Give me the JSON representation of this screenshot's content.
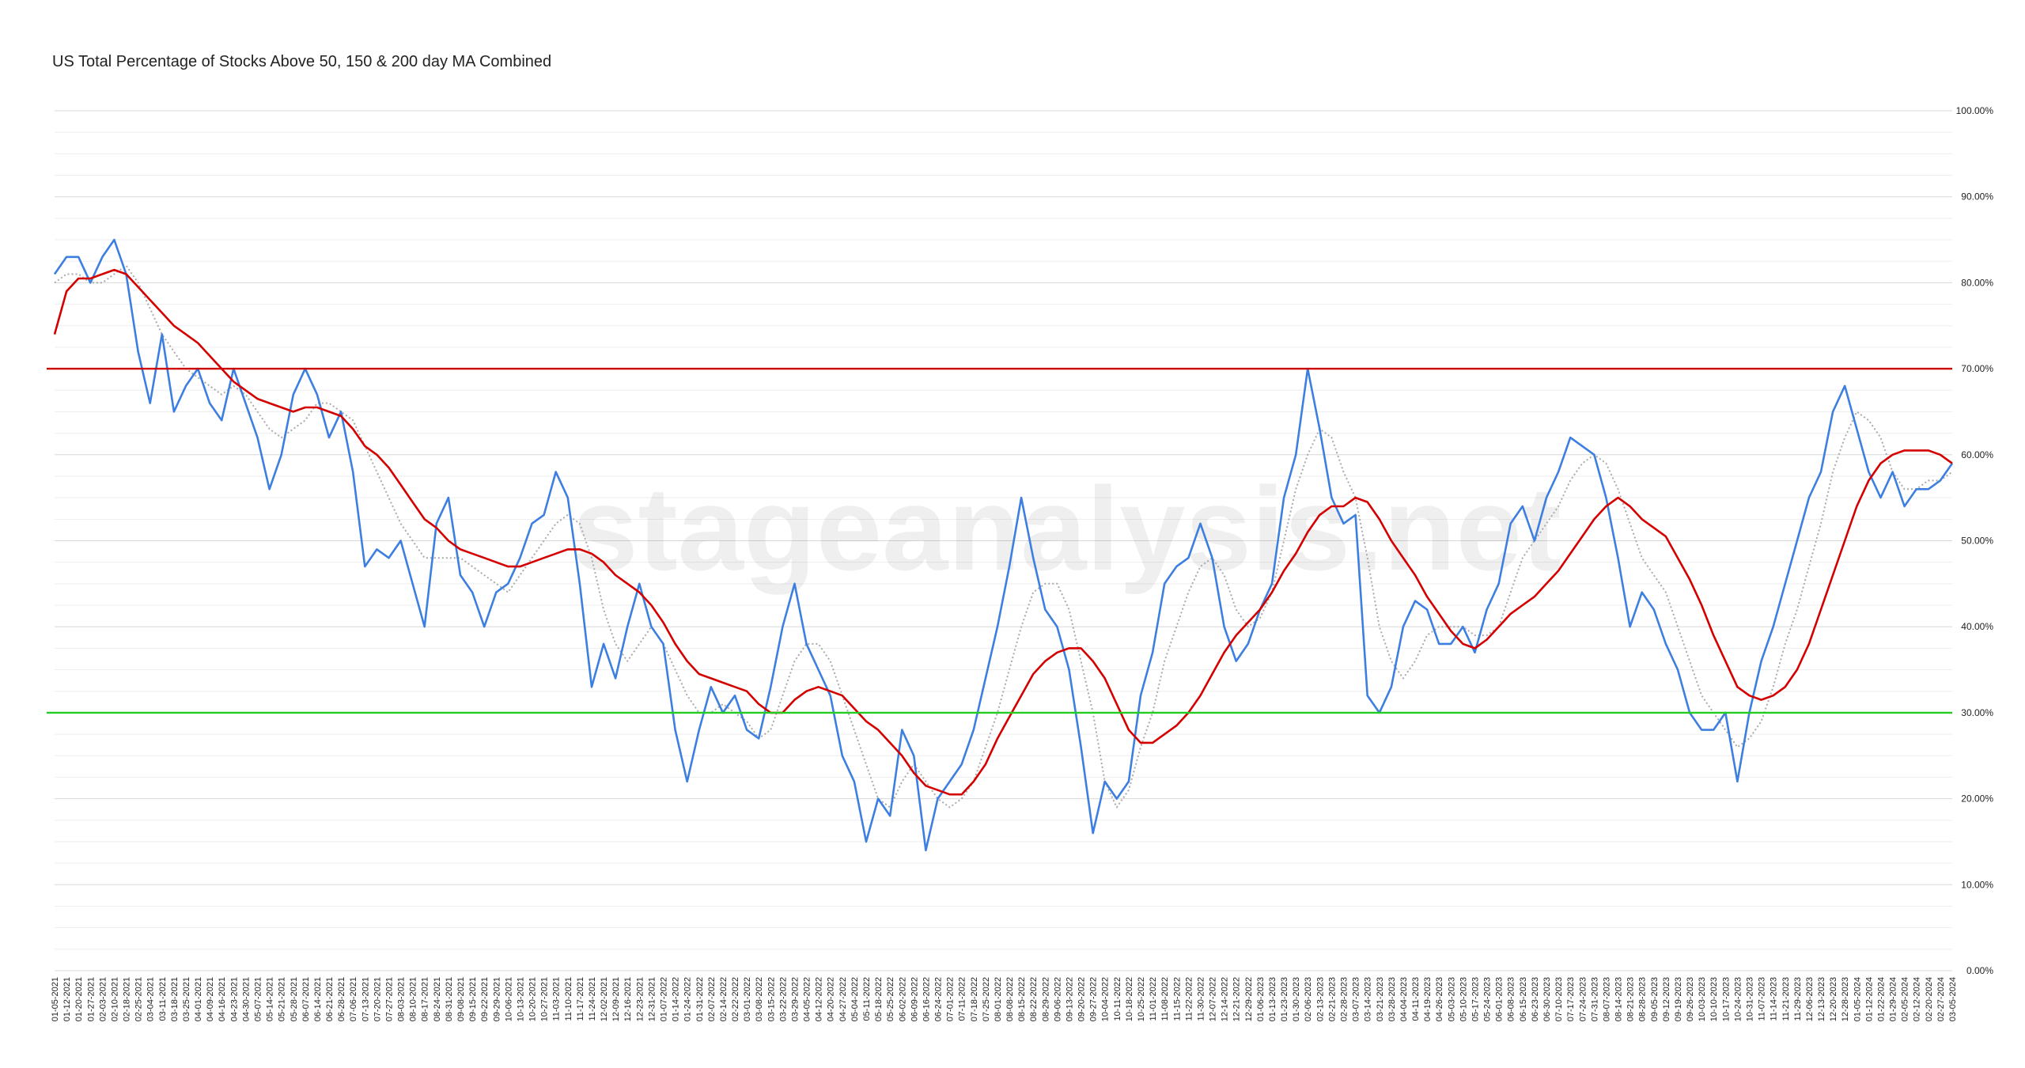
{
  "chart_data": {
    "type": "line",
    "title": "US Total Percentage of Stocks Above 50, 150 & 200 day MA Combined",
    "watermark": "stageanalysis.net",
    "categories": [
      "01-05-2021",
      "01-12-2021",
      "01-20-2021",
      "01-27-2021",
      "02-03-2021",
      "02-10-2021",
      "02-18-2021",
      "02-25-2021",
      "03-04-2021",
      "03-11-2021",
      "03-18-2021",
      "03-25-2021",
      "04-01-2021",
      "04-09-2021",
      "04-16-2021",
      "04-23-2021",
      "04-30-2021",
      "05-07-2021",
      "05-14-2021",
      "05-21-2021",
      "05-28-2021",
      "06-07-2021",
      "06-14-2021",
      "06-21-2021",
      "06-28-2021",
      "07-06-2021",
      "07-13-2021",
      "07-20-2021",
      "07-27-2021",
      "08-03-2021",
      "08-10-2021",
      "08-17-2021",
      "08-24-2021",
      "08-31-2021",
      "09-08-2021",
      "09-15-2021",
      "09-22-2021",
      "09-29-2021",
      "10-06-2021",
      "10-13-2021",
      "10-20-2021",
      "10-27-2021",
      "11-03-2021",
      "11-10-2021",
      "11-17-2021",
      "11-24-2021",
      "12-02-2021",
      "12-09-2021",
      "12-16-2021",
      "12-23-2021",
      "12-31-2021",
      "01-07-2022",
      "01-14-2022",
      "01-24-2022",
      "01-31-2022",
      "02-07-2022",
      "02-14-2022",
      "02-22-2022",
      "03-01-2022",
      "03-08-2022",
      "03-15-2022",
      "03-22-2022",
      "03-29-2022",
      "04-05-2022",
      "04-12-2022",
      "04-20-2022",
      "04-27-2022",
      "05-04-2022",
      "05-11-2022",
      "05-18-2022",
      "05-25-2022",
      "06-02-2022",
      "06-09-2022",
      "06-16-2022",
      "06-24-2022",
      "07-01-2022",
      "07-11-2022",
      "07-18-2022",
      "07-25-2022",
      "08-01-2022",
      "08-08-2022",
      "08-15-2022",
      "08-22-2022",
      "08-29-2022",
      "09-06-2022",
      "09-13-2022",
      "09-20-2022",
      "09-27-2022",
      "10-04-2022",
      "10-11-2022",
      "10-18-2022",
      "10-25-2022",
      "11-01-2022",
      "11-08-2022",
      "11-15-2022",
      "11-22-2022",
      "11-30-2022",
      "12-07-2022",
      "12-14-2022",
      "12-21-2022",
      "12-29-2022",
      "01-06-2023",
      "01-13-2023",
      "01-23-2023",
      "01-30-2023",
      "02-06-2023",
      "02-13-2023",
      "02-21-2023",
      "02-28-2023",
      "03-07-2023",
      "03-14-2023",
      "03-21-2023",
      "03-28-2023",
      "04-04-2023",
      "04-11-2023",
      "04-19-2023",
      "04-26-2023",
      "05-03-2023",
      "05-10-2023",
      "05-17-2023",
      "05-24-2023",
      "06-01-2023",
      "06-08-2023",
      "06-15-2023",
      "06-23-2023",
      "06-30-2023",
      "07-10-2023",
      "07-17-2023",
      "07-24-2023",
      "07-31-2023",
      "08-07-2023",
      "08-14-2023",
      "08-21-2023",
      "08-28-2023",
      "09-05-2023",
      "09-12-2023",
      "09-19-2023",
      "09-26-2023",
      "10-03-2023",
      "10-10-2023",
      "10-17-2023",
      "10-24-2023",
      "10-31-2023",
      "11-07-2023",
      "11-14-2023",
      "11-21-2023",
      "11-29-2023",
      "12-06-2023",
      "12-13-2023",
      "12-20-2023",
      "12-28-2023",
      "01-05-2024",
      "01-12-2024",
      "01-22-2024",
      "01-29-2024",
      "02-05-2024",
      "02-12-2024",
      "02-20-2024",
      "02-27-2024",
      "03-05-2024"
    ],
    "series": [
      {
        "color": "#aaaaaa",
        "style": "dotted",
        "values": [
          80,
          81,
          81,
          80,
          80,
          81,
          82,
          80,
          77,
          74,
          72,
          70,
          69,
          68,
          67,
          68,
          67,
          65,
          63,
          62,
          63,
          64,
          66,
          66,
          65,
          64,
          61,
          58,
          55,
          52,
          50,
          48,
          48,
          48,
          48,
          47,
          46,
          45,
          44,
          46,
          48,
          50,
          52,
          53,
          52,
          48,
          42,
          38,
          36,
          38,
          40,
          38,
          35,
          32,
          30,
          30,
          31,
          30,
          29,
          27,
          28,
          32,
          36,
          38,
          38,
          36,
          32,
          28,
          24,
          20,
          19,
          22,
          24,
          22,
          20,
          19,
          20,
          22,
          26,
          30,
          35,
          40,
          44,
          45,
          45,
          42,
          36,
          30,
          22,
          19,
          21,
          26,
          30,
          36,
          40,
          44,
          47,
          48,
          46,
          42,
          40,
          41,
          44,
          50,
          56,
          60,
          63,
          62,
          58,
          55,
          48,
          40,
          36,
          34,
          36,
          39,
          40,
          40,
          40,
          39,
          39,
          40,
          44,
          48,
          50,
          52,
          54,
          57,
          59,
          60,
          59,
          56,
          52,
          48,
          46,
          44,
          40,
          36,
          32,
          30,
          28,
          26,
          27,
          29,
          33,
          38,
          42,
          47,
          52,
          58,
          62,
          65,
          64,
          62,
          58,
          56,
          56,
          57,
          57,
          58
        ]
      },
      {
        "color": "#3d7fe0",
        "style": "solid",
        "values": [
          81,
          83,
          83,
          80,
          83,
          85,
          81,
          72,
          66,
          74,
          65,
          68,
          70,
          66,
          64,
          70,
          66,
          62,
          56,
          60,
          67,
          70,
          67,
          62,
          65,
          58,
          47,
          49,
          48,
          50,
          45,
          40,
          52,
          55,
          46,
          44,
          40,
          44,
          45,
          48,
          52,
          53,
          58,
          55,
          45,
          33,
          38,
          34,
          40,
          45,
          40,
          38,
          28,
          22,
          28,
          33,
          30,
          32,
          28,
          27,
          33,
          40,
          45,
          38,
          35,
          32,
          25,
          22,
          15,
          20,
          18,
          28,
          25,
          14,
          20,
          22,
          24,
          28,
          34,
          40,
          47,
          55,
          48,
          42,
          40,
          35,
          26,
          16,
          22,
          20,
          22,
          32,
          37,
          45,
          47,
          48,
          52,
          48,
          40,
          36,
          38,
          42,
          45,
          55,
          60,
          70,
          63,
          55,
          52,
          53,
          32,
          30,
          33,
          40,
          43,
          42,
          38,
          38,
          40,
          37,
          42,
          45,
          52,
          54,
          50,
          55,
          58,
          62,
          61,
          60,
          55,
          48,
          40,
          44,
          42,
          38,
          35,
          30,
          28,
          28,
          30,
          22,
          30,
          36,
          40,
          45,
          50,
          55,
          58,
          65,
          68,
          63,
          58,
          55,
          58,
          54,
          56,
          56,
          57,
          59
        ]
      },
      {
        "color": "#d40000",
        "style": "solid",
        "values": [
          74,
          79,
          80.5,
          80.5,
          81,
          81.5,
          81,
          79.5,
          78,
          76.5,
          75,
          74,
          73,
          71.5,
          70,
          68.5,
          67.5,
          66.5,
          66,
          65.5,
          65,
          65.5,
          65.5,
          65,
          64.5,
          63,
          61,
          60,
          58.5,
          56.5,
          54.5,
          52.5,
          51.5,
          50,
          49,
          48.5,
          48,
          47.5,
          47,
          47,
          47.5,
          48,
          48.5,
          49,
          49,
          48.5,
          47.5,
          46,
          45,
          44,
          42.5,
          40.5,
          38,
          36,
          34.5,
          34,
          33.5,
          33,
          32.5,
          31,
          30,
          30,
          31.5,
          32.5,
          33,
          32.5,
          32,
          30.5,
          29,
          28,
          26.5,
          25,
          23,
          21.5,
          21,
          20.5,
          20.5,
          22,
          24,
          27,
          29.5,
          32,
          34.5,
          36,
          37,
          37.5,
          37.5,
          36,
          34,
          31,
          28,
          26.5,
          26.5,
          27.5,
          28.5,
          30,
          32,
          34.5,
          37,
          39,
          40.5,
          42,
          44,
          46.5,
          48.5,
          51,
          53,
          54,
          54,
          55,
          54.5,
          52.5,
          50,
          48,
          46,
          43.5,
          41.5,
          39.5,
          38,
          37.5,
          38.5,
          40,
          41.5,
          42.5,
          43.5,
          45,
          46.5,
          48.5,
          50.5,
          52.5,
          54,
          55,
          54,
          52.5,
          51.5,
          50.5,
          48,
          45.5,
          42.5,
          39,
          36,
          33,
          32,
          31.5,
          32,
          33,
          35,
          38,
          42,
          46,
          50,
          54,
          57,
          59,
          60,
          60.5,
          60.5,
          60.5,
          60,
          59
        ]
      }
    ],
    "reference_lines": [
      {
        "value": 70,
        "color": "#cc0000"
      },
      {
        "value": 30,
        "color": "#22cc22"
      }
    ],
    "ylim": [
      0,
      100
    ],
    "yticks": [
      {
        "value": 0,
        "label": "0.00%"
      },
      {
        "value": 10,
        "label": "10.00%"
      },
      {
        "value": 20,
        "label": "20.00%"
      },
      {
        "value": 30,
        "label": "30.00%"
      },
      {
        "value": 40,
        "label": "40.00%"
      },
      {
        "value": 50,
        "label": "50.00%"
      },
      {
        "value": 60,
        "label": "60.00%"
      },
      {
        "value": 70,
        "label": "70.00%"
      },
      {
        "value": 80,
        "label": "80.00%"
      },
      {
        "value": 90,
        "label": "90.00%"
      },
      {
        "value": 100,
        "label": "100.00%"
      }
    ],
    "minor_yticks": [
      2.5,
      5,
      7.5,
      12.5,
      15,
      17.5,
      22.5,
      25,
      27.5,
      32.5,
      35,
      37.5,
      42.5,
      45,
      47.5,
      52.5,
      55,
      57.5,
      62.5,
      65,
      67.5,
      72.5,
      75,
      77.5,
      82.5,
      85,
      87.5,
      92.5,
      95,
      97.5
    ],
    "grid": true
  }
}
